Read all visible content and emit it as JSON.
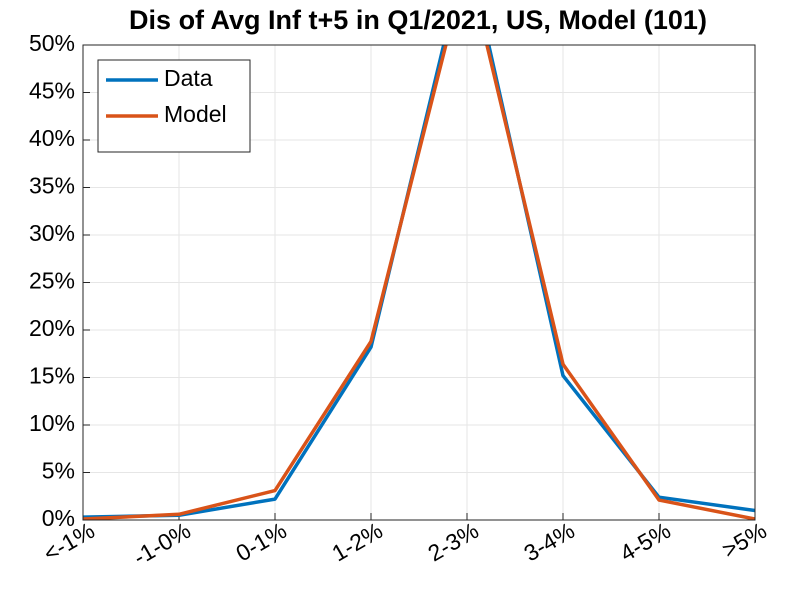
{
  "chart_data": {
    "type": "line",
    "title": "Dis of Avg Inf t+5 in Q1/2021, US, Model (101)",
    "categories": [
      "<-1%",
      "-1-0%",
      "0-1%",
      "1-2%",
      "2-3%",
      "3-4%",
      "4-5%",
      ">5%"
    ],
    "series": [
      {
        "name": "Data",
        "color": "#0072bd",
        "values": [
          0.3,
          0.5,
          2.2,
          18.2,
          60.2,
          15.2,
          2.4,
          1.0
        ]
      },
      {
        "name": "Model",
        "color": "#d95319",
        "values": [
          0.1,
          0.6,
          3.1,
          18.8,
          58.8,
          16.4,
          2.1,
          0.1
        ]
      }
    ],
    "ylim": [
      0,
      50
    ],
    "yticks": [
      {
        "value": 0,
        "label": "0%"
      },
      {
        "value": 5,
        "label": "5%"
      },
      {
        "value": 10,
        "label": "10%"
      },
      {
        "value": 15,
        "label": "15%"
      },
      {
        "value": 20,
        "label": "20%"
      },
      {
        "value": 25,
        "label": "25%"
      },
      {
        "value": 30,
        "label": "30%"
      },
      {
        "value": 35,
        "label": "35%"
      },
      {
        "value": 40,
        "label": "40%"
      },
      {
        "value": 45,
        "label": "45%"
      },
      {
        "value": 50,
        "label": "50%"
      }
    ],
    "grid": true,
    "legend": "northwest"
  }
}
